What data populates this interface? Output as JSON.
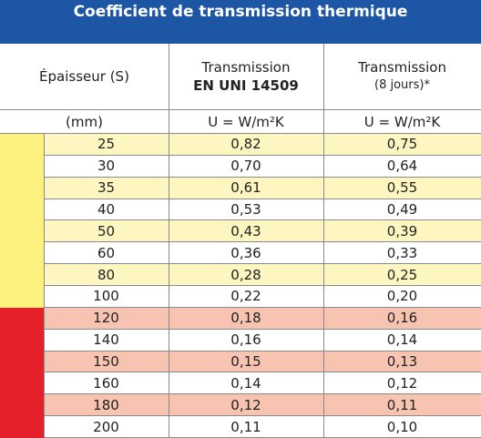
{
  "header": {
    "title": "Coefficient de transmission thermique"
  },
  "table": {
    "columns": [
      {
        "line1": "Épaisseur (S)"
      },
      {
        "line1": "Transmission",
        "line2": "EN UNI 14509"
      },
      {
        "line1": "Transmission",
        "line2": "(8 jours)*"
      }
    ],
    "units": [
      "(mm)",
      "U = W/m²K",
      "U = W/m²K"
    ],
    "rows": [
      [
        "25",
        "0,82",
        "0,75"
      ],
      [
        "30",
        "0,70",
        "0,64"
      ],
      [
        "35",
        "0,61",
        "0,55"
      ],
      [
        "40",
        "0,53",
        "0,49"
      ],
      [
        "50",
        "0,43",
        "0,39"
      ],
      [
        "60",
        "0,36",
        "0,33"
      ],
      [
        "80",
        "0,28",
        "0,25"
      ],
      [
        "100",
        "0,22",
        "0,20"
      ],
      [
        "120",
        "0,18",
        "0,16"
      ],
      [
        "140",
        "0,16",
        "0,14"
      ],
      [
        "150",
        "0,15",
        "0,13"
      ],
      [
        "160",
        "0,14",
        "0,12"
      ],
      [
        "180",
        "0,12",
        "0,11"
      ],
      [
        "200",
        "0,11",
        "0,10"
      ]
    ]
  }
}
